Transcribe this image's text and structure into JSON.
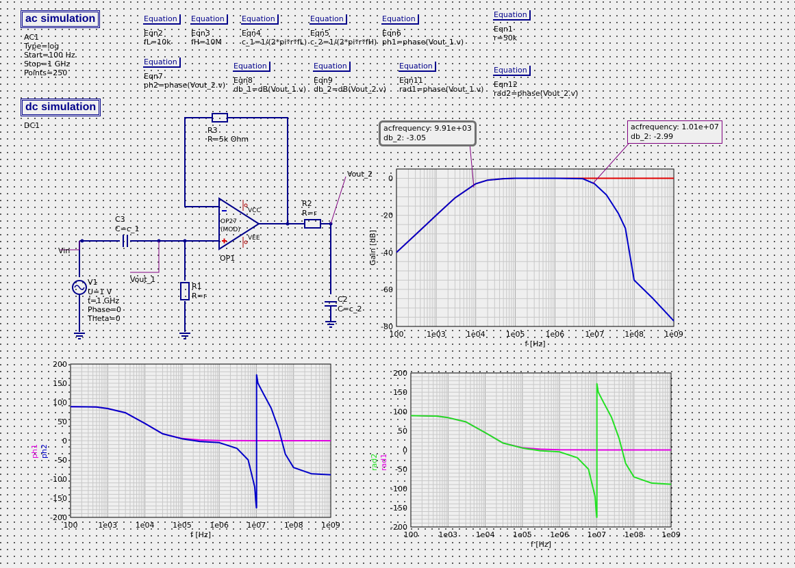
{
  "simulations": {
    "ac": {
      "title": "ac simulation",
      "lines": [
        "AC1",
        "Type=log",
        "Start=100 Hz",
        "Stop=1 GHz",
        "Points=250"
      ]
    },
    "dc": {
      "title": "dc simulation",
      "lines": [
        "DC1"
      ]
    }
  },
  "equations": [
    {
      "head": "Equation",
      "name": "Eqn2",
      "expr": "fL=10k"
    },
    {
      "head": "Equation",
      "name": "Eqn3",
      "expr": "fH=10M"
    },
    {
      "head": "Equation",
      "name": "Eqn4",
      "expr": "c_1=1/(2*pi*r*fL)"
    },
    {
      "head": "Equation",
      "name": "Eqn5",
      "expr": "c_2=1/(2*pi*r*fH)"
    },
    {
      "head": "Equation",
      "name": "Eqn6",
      "expr": "ph1=phase(Vout_1.v)"
    },
    {
      "head": "Equation",
      "name": "Eqn1",
      "expr": "r=50k"
    },
    {
      "head": "Equation",
      "name": "Eqn7",
      "expr": "ph2=phase(Vout_2.v)"
    },
    {
      "head": "Equation",
      "name": "Eqn8",
      "expr": "db_1=dB(Vout_1.v)"
    },
    {
      "head": "Equation",
      "name": "Eqn9",
      "expr": "db_2=dB(Vout_2.v)"
    },
    {
      "head": "Equation",
      "name": "Eqn11",
      "expr": "rad1=phase(Vout_1.v)"
    },
    {
      "head": "Equation",
      "name": "Eqn12",
      "expr": "rad2=phase(Vout_2.v)"
    }
  ],
  "schematic": {
    "r3": {
      "name": "R3",
      "value": "R=5k Ohm"
    },
    "r2": {
      "name": "R2",
      "value": "R=r"
    },
    "r1": {
      "name": "R1",
      "value": "R=r"
    },
    "c3": {
      "name": "C3",
      "value": "C=c_1"
    },
    "c2": {
      "name": "C2",
      "value": "C=c_2"
    },
    "op1": {
      "name": "OP1",
      "model": "OP27",
      "mod": "(MOD)",
      "vcc": "VCC",
      "vee": "VEE"
    },
    "v1": {
      "name": "V1",
      "lines": [
        "U=1 V",
        "f=1 GHz",
        "Phase=0",
        "Theta=0"
      ]
    },
    "labels": {
      "vin": "Vin",
      "vout1": "Vout_1",
      "vout2": "Vout_2"
    }
  },
  "markers": [
    {
      "line1": "acfrequency: 9.91e+03",
      "line2": "db_2: -3.05"
    },
    {
      "line1": "acfrequency: 1.01e+07",
      "line2": "db_2: -2.99"
    }
  ],
  "colors": {
    "red": "#e00000",
    "blue": "#0000c8",
    "magenta": "#e000e0",
    "green": "#22e022",
    "grid": "#c0c0c0",
    "wire": "#00008a"
  },
  "chart_data": [
    {
      "type": "line",
      "id": "gain",
      "xlabel": "f [Hz]",
      "ylabel": "Gain [dB]",
      "xscale": "log",
      "xlim": [
        100,
        1000000000
      ],
      "ylim": [
        -80,
        5
      ],
      "xticks": [
        "100",
        "1e03",
        "1e04",
        "1e05",
        "1e06",
        "1e07",
        "1e08",
        "1e09"
      ],
      "yticks": [
        "0",
        "-20",
        "-40",
        "-60",
        "-80"
      ],
      "series": [
        {
          "name": "db_1",
          "color": "red",
          "x": [
            100,
            300,
            1000,
            3000,
            10000,
            20000,
            50000,
            100000,
            1000000,
            10000000,
            100000000,
            1000000000
          ],
          "y": [
            -40,
            -30.5,
            -20,
            -10.6,
            -3,
            -1,
            -0.2,
            0,
            0,
            0,
            0,
            0
          ]
        },
        {
          "name": "db_2",
          "color": "blue",
          "x": [
            100,
            300,
            1000,
            3000,
            10000,
            20000,
            50000,
            100000,
            1000000,
            5000000,
            10000000,
            20000000,
            40000000,
            60000000,
            100000000,
            300000000,
            1000000000
          ],
          "y": [
            -40,
            -30.5,
            -20,
            -10.6,
            -3,
            -1,
            -0.2,
            0,
            0,
            -0.2,
            -3,
            -9,
            -19,
            -27,
            -55,
            -65,
            -77
          ]
        }
      ]
    },
    {
      "type": "line",
      "id": "phase-deg",
      "xlabel": "f [Hz]",
      "ylabel": [
        "ph1",
        "ph2"
      ],
      "xscale": "log",
      "xlim": [
        100,
        1000000000
      ],
      "ylim": [
        -200,
        200
      ],
      "xticks": [
        "100",
        "1e03",
        "1e04",
        "1e05",
        "1e06",
        "1e07",
        "1e08",
        "1e09"
      ],
      "yticks": [
        "200",
        "150",
        "100",
        "50",
        "0",
        "-50",
        "-100",
        "-150",
        "-200"
      ],
      "series": [
        {
          "name": "ph1",
          "color": "magenta",
          "x": [
            100,
            500,
            1000,
            3000,
            10000,
            30000,
            100000,
            300000,
            1000000,
            10000000,
            100000000,
            1000000000
          ],
          "y": [
            89,
            88,
            84,
            73,
            45,
            18,
            5.7,
            2,
            0.5,
            0,
            0,
            0
          ]
        },
        {
          "name": "ph2",
          "color": "blue",
          "x": [
            100,
            500,
            1000,
            3000,
            10000,
            30000,
            100000,
            300000,
            1000000,
            3000000,
            6000000,
            9000000,
            10000000,
            10100000,
            11000000,
            15000000,
            25000000,
            40000000,
            60000000,
            100000000,
            300000000,
            1000000000
          ],
          "y": [
            89,
            88,
            84,
            73,
            45,
            18,
            5,
            -2,
            -5,
            -20,
            -50,
            -120,
            -175,
            172,
            150,
            125,
            85,
            30,
            -35,
            -70,
            -86,
            -89
          ]
        }
      ]
    },
    {
      "type": "line",
      "id": "phase-rad",
      "xlabel": "f [Hz]",
      "ylabel": [
        "rad2",
        "rad1"
      ],
      "xscale": "log",
      "xlim": [
        100,
        1000000000
      ],
      "ylim": [
        -200,
        200
      ],
      "xticks": [
        "100",
        "1e03",
        "1e04",
        "1e05",
        "1e06",
        "1e07",
        "1e08",
        "1e09"
      ],
      "yticks": [
        "200",
        "150",
        "100",
        "50",
        "0",
        "-50",
        "-100",
        "-150",
        "-200"
      ],
      "series": [
        {
          "name": "rad1",
          "color": "magenta",
          "x": [
            100,
            500,
            1000,
            3000,
            10000,
            30000,
            100000,
            300000,
            1000000,
            10000000,
            100000000,
            1000000000
          ],
          "y": [
            89,
            88,
            84,
            73,
            45,
            18,
            5.7,
            2,
            0.5,
            0,
            0,
            0
          ]
        },
        {
          "name": "rad2",
          "color": "green",
          "x": [
            100,
            500,
            1000,
            3000,
            10000,
            30000,
            100000,
            300000,
            1000000,
            3000000,
            6000000,
            9000000,
            10000000,
            10100000,
            11000000,
            15000000,
            25000000,
            40000000,
            60000000,
            100000000,
            300000000,
            1000000000
          ],
          "y": [
            89,
            88,
            84,
            73,
            45,
            18,
            5,
            -2,
            -5,
            -20,
            -50,
            -120,
            -175,
            172,
            150,
            125,
            85,
            30,
            -35,
            -70,
            -86,
            -89
          ]
        }
      ]
    }
  ]
}
